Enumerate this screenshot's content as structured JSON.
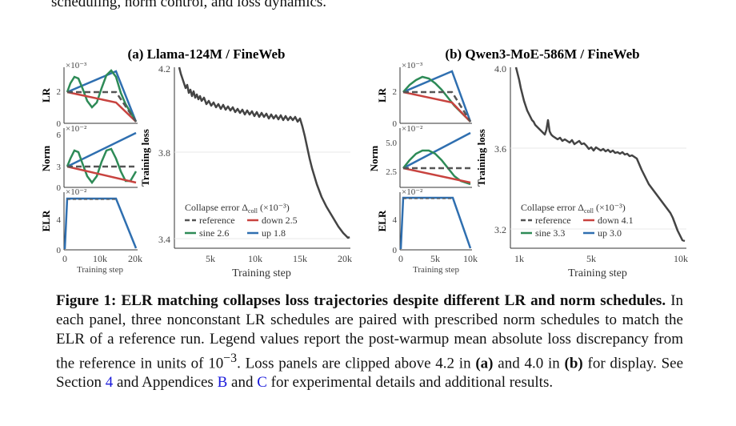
{
  "top_text": "scheduling, norm control, and loss dynamics.",
  "panels": [
    {
      "title": "(a) Llama-124M / FineWeb",
      "small_xlabel": "Training step",
      "small_xticks": [
        "0",
        "10k",
        "20k"
      ],
      "lr": {
        "ylabel": "LR",
        "exp": "×10⁻³",
        "yticks": [
          "0",
          "2"
        ]
      },
      "norm": {
        "ylabel": "Norm",
        "exp": "×10⁻²",
        "yticks": [
          "6",
          "3",
          "0"
        ]
      },
      "elr": {
        "ylabel": "ELR",
        "exp": "×10⁻²",
        "yticks": [
          "4",
          "0"
        ]
      },
      "loss": {
        "ylabel": "Training loss",
        "xlabel": "Training step",
        "yticks": [
          "4.2",
          "3.8",
          "3.4"
        ],
        "xticks": [
          "5k",
          "10k",
          "15k",
          "20k"
        ]
      },
      "legend": {
        "title_prefix": "Collapse error Δ",
        "title_sub": "coll",
        "title_suffix": "(×10⁻³)",
        "entries": [
          {
            "name": "reference",
            "value": "",
            "color": "#555555"
          },
          {
            "name": "down",
            "value": "2.5",
            "color": "#c8433f"
          },
          {
            "name": "sine",
            "value": "2.6",
            "color": "#2e8b57"
          },
          {
            "name": "up",
            "value": "1.8",
            "color": "#2f6fb0"
          }
        ]
      }
    },
    {
      "title": "(b) Qwen3-MoE-586M / FineWeb",
      "small_xlabel": "Training step",
      "small_xticks": [
        "0",
        "5k",
        "10k"
      ],
      "lr": {
        "ylabel": "LR",
        "exp": "×10⁻³",
        "yticks": [
          "0",
          "2"
        ]
      },
      "norm": {
        "ylabel": "Norm",
        "exp": "×10⁻²",
        "yticks": [
          "5.0",
          "2.5"
        ]
      },
      "elr": {
        "ylabel": "ELR",
        "exp": "×10⁻²",
        "yticks": [
          "4",
          "0"
        ]
      },
      "loss": {
        "ylabel": "Training loss",
        "xlabel": "Training step",
        "yticks": [
          "4.0",
          "3.6",
          "3.2"
        ],
        "xticks": [
          "1k",
          "5k",
          "10k"
        ]
      },
      "legend": {
        "title_prefix": "Collapse error Δ",
        "title_sub": "coll",
        "title_suffix": "(×10⁻³)",
        "entries": [
          {
            "name": "reference",
            "value": "",
            "color": "#555555"
          },
          {
            "name": "down",
            "value": "4.1",
            "color": "#c8433f"
          },
          {
            "name": "sine",
            "value": "3.3",
            "color": "#2e8b57"
          },
          {
            "name": "up",
            "value": "3.0",
            "color": "#2f6fb0"
          }
        ]
      }
    }
  ],
  "caption": {
    "label": "Figure 1:",
    "bold_title": "ELR matching collapses loss trajectories despite different LR and norm schedules.",
    "text1": "In each panel, three nonconstant LR schedules are paired with prescribed norm schedules to match the ELR of a reference run. Legend values report the post-warmup mean absolute loss discrepancy from the reference in units of 10",
    "sup": "−3",
    "text2": ". Loss panels are clipped above 4.2 in",
    "a": "(a)",
    "and": "and 4.0 in",
    "b": "(b)",
    "text3": "for display. See Section",
    "sec": "4",
    "text4": "and Appendices",
    "appB": "B",
    "and2": "and",
    "appC": "C",
    "text5": "for experimental details and additional results."
  },
  "chart_data": [
    {
      "type": "line",
      "title": "(a) Llama-124M / FineWeb",
      "xlabel": "Training step",
      "ylabel": "Training loss",
      "xlim": [
        1000,
        20500
      ],
      "ylim": [
        3.38,
        4.2
      ],
      "series": [
        {
          "name": "reference",
          "x": [
            1000,
            2000,
            3000,
            4000,
            5000,
            6000,
            7000,
            8000,
            9000,
            10000,
            11000,
            12000,
            13000,
            14000,
            15000,
            16000,
            17000,
            18000,
            19000,
            20000
          ],
          "values": [
            4.18,
            4.08,
            4.04,
            4.02,
            4.01,
            4.0,
            3.99,
            3.985,
            3.98,
            3.975,
            3.97,
            3.97,
            3.965,
            3.96,
            3.91,
            3.83,
            3.73,
            3.63,
            3.52,
            3.42
          ]
        }
      ]
    },
    {
      "type": "line",
      "title": "(b) Qwen3-MoE-586M / FineWeb",
      "xlabel": "Training step",
      "ylabel": "Training loss",
      "xscale": "log",
      "xlim": [
        1000,
        10200
      ],
      "ylim": [
        3.12,
        4.0
      ],
      "series": [
        {
          "name": "reference",
          "x": [
            1000,
            1200,
            1500,
            1800,
            2000,
            2500,
            3000,
            3500,
            4000,
            4500,
            5000,
            5500,
            6000,
            6500,
            7000,
            7500,
            8000,
            8500,
            9000,
            9500,
            10000
          ],
          "values": [
            4.0,
            3.85,
            3.74,
            3.68,
            3.66,
            3.64,
            3.625,
            3.61,
            3.6,
            3.59,
            3.585,
            3.58,
            3.575,
            3.57,
            3.55,
            3.49,
            3.42,
            3.35,
            3.28,
            3.21,
            3.15
          ]
        }
      ]
    }
  ]
}
